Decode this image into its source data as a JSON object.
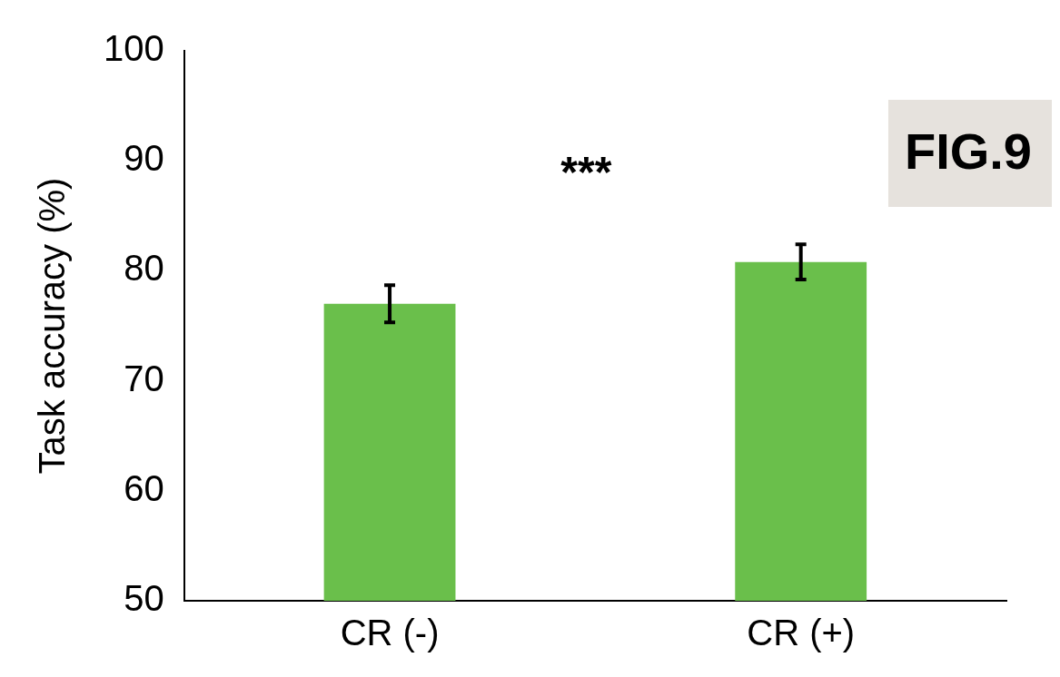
{
  "chart_data": {
    "type": "bar",
    "categories": [
      "CR (-)",
      "CR (+)"
    ],
    "values": [
      77.0,
      80.8
    ],
    "errors": [
      1.7,
      1.6
    ],
    "color": "#6abf4b",
    "ylabel": "Task accuracy (%)",
    "ylim": [
      50,
      100
    ],
    "yticks": [
      50,
      60,
      70,
      80,
      90,
      100
    ],
    "grid": false,
    "legend": false,
    "annotations": [
      "***",
      "FIG.9"
    ]
  }
}
